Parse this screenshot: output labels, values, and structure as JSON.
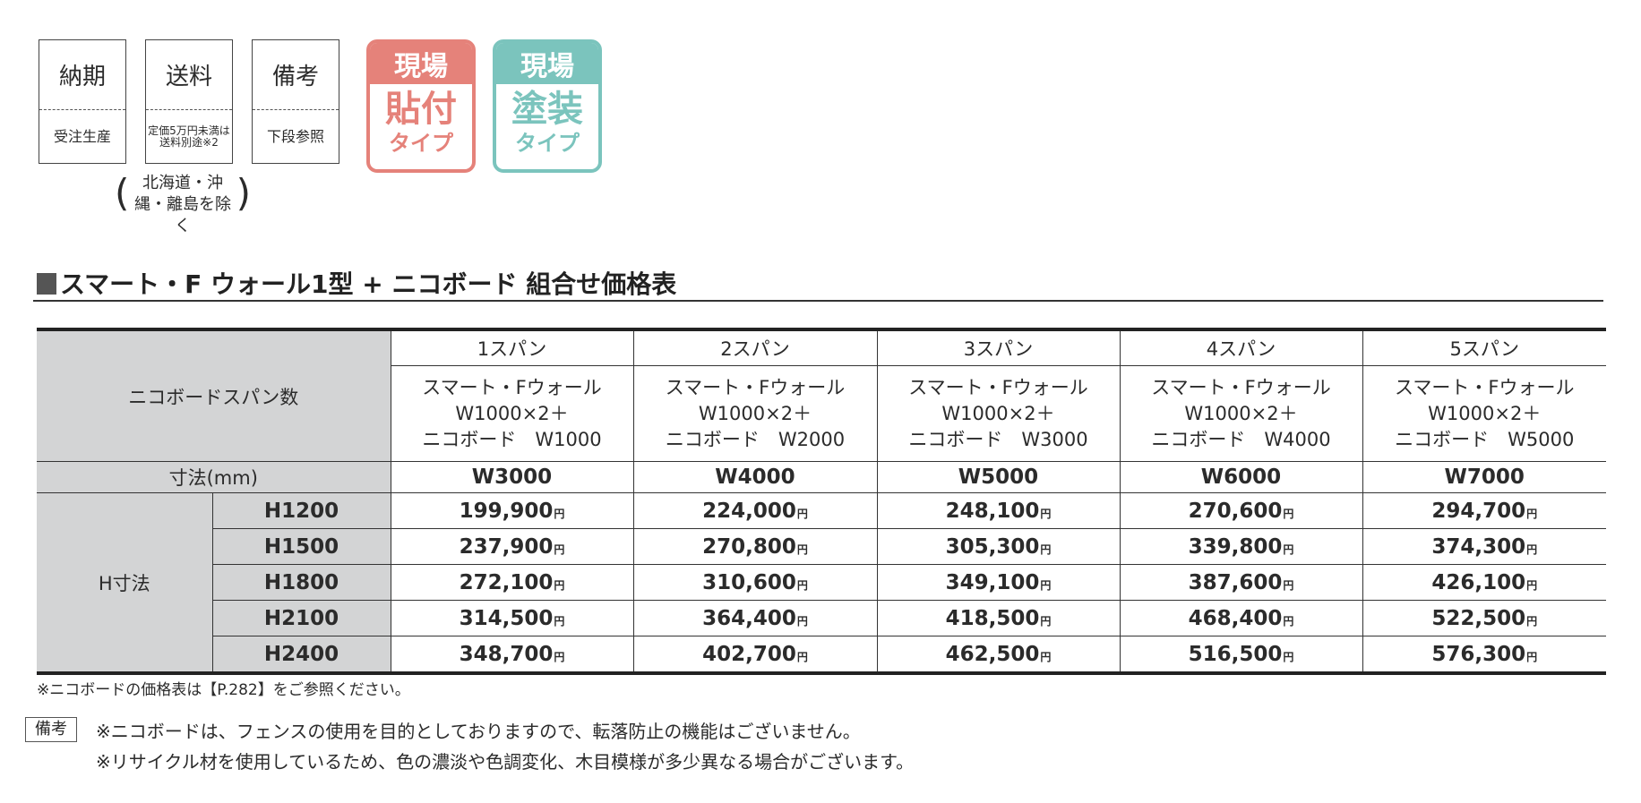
{
  "info_boxes": [
    {
      "label": "納期",
      "value": "受注生産"
    },
    {
      "label": "送料",
      "value": "定価5万円未満は送料別途※2"
    },
    {
      "label": "備考",
      "value": "下段参照"
    }
  ],
  "shipping_note": "北海道・沖縄・離島を除く",
  "badges": [
    {
      "top": "現場",
      "main": "貼付",
      "sub": "タイプ",
      "color": "#e5827a"
    },
    {
      "top": "現場",
      "main": "塗装",
      "sub": "タイプ",
      "color": "#7bc4bd"
    }
  ],
  "section_title": "スマート・F ウォール1型 + ニコボード 組合せ価格表",
  "table": {
    "span_header": "ニコボードスパン数",
    "dim_header": "寸法(mm)",
    "h_header": "H寸法",
    "columns": [
      {
        "span": "1スパン",
        "desc1": "スマート・Fウォール",
        "desc2": "W1000×2＋",
        "desc3": "ニコボード　W1000",
        "width": "W3000"
      },
      {
        "span": "2スパン",
        "desc1": "スマート・Fウォール",
        "desc2": "W1000×2＋",
        "desc3": "ニコボード　W2000",
        "width": "W4000"
      },
      {
        "span": "3スパン",
        "desc1": "スマート・Fウォール",
        "desc2": "W1000×2＋",
        "desc3": "ニコボード　W3000",
        "width": "W5000"
      },
      {
        "span": "4スパン",
        "desc1": "スマート・Fウォール",
        "desc2": "W1000×2＋",
        "desc3": "ニコボード　W4000",
        "width": "W6000"
      },
      {
        "span": "5スパン",
        "desc1": "スマート・Fウォール",
        "desc2": "W1000×2＋",
        "desc3": "ニコボード　W5000",
        "width": "W7000"
      }
    ],
    "currency": "円",
    "rows": [
      {
        "h": "H1200",
        "prices": [
          "199,900",
          "224,000",
          "248,100",
          "270,600",
          "294,700"
        ]
      },
      {
        "h": "H1500",
        "prices": [
          "237,900",
          "270,800",
          "305,300",
          "339,800",
          "374,300"
        ]
      },
      {
        "h": "H1800",
        "prices": [
          "272,100",
          "310,600",
          "349,100",
          "387,600",
          "426,100"
        ]
      },
      {
        "h": "H2100",
        "prices": [
          "314,500",
          "364,400",
          "418,500",
          "468,400",
          "522,500"
        ]
      },
      {
        "h": "H2400",
        "prices": [
          "348,700",
          "402,700",
          "462,500",
          "516,500",
          "576,300"
        ]
      }
    ]
  },
  "footnote": "※ニコボードの価格表は【P.282】をご参照ください。",
  "remarks_label": "備考",
  "remarks": [
    "※ニコボードは、フェンスの使用を目的としておりますので、転落防止の機能はございません。",
    "※リサイクル材を使用しているため、色の濃淡や色調変化、木目模様が多少異なる場合がございます。"
  ]
}
